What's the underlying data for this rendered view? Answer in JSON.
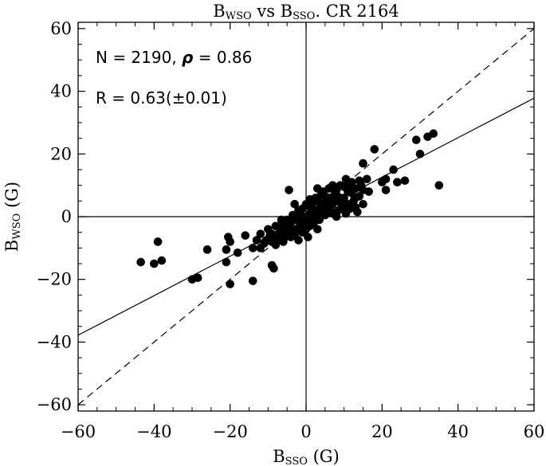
{
  "chart_data": {
    "type": "scatter",
    "title": {
      "main": "B",
      "main_sub": "WSO",
      "mid": " vs B",
      "mid_sub": "SSO",
      "tail": ". CR 2164"
    },
    "xlabel": {
      "main": "B",
      "sub": "SSO",
      "tail": " (G)"
    },
    "ylabel": {
      "main": "B",
      "sub": "WSO",
      "tail": " (G)"
    },
    "xlim": [
      -60,
      60
    ],
    "ylim": [
      -62,
      62
    ],
    "xticks": [
      -60,
      -40,
      -20,
      0,
      20,
      40,
      60
    ],
    "yticks": [
      -60,
      -40,
      -20,
      0,
      20,
      40,
      60
    ],
    "xtick_labels": [
      "−60",
      "−40",
      "−20",
      "0",
      "20",
      "40",
      "60"
    ],
    "ytick_labels": [
      "−60",
      "−40",
      "−20",
      "0",
      "20",
      "40",
      "60"
    ],
    "annotations": {
      "stats_line1": "N = 2190, ",
      "rho_symbol": "ρ",
      "stats_line1_tail": " = 0.86",
      "stats_line2": "R = 0.63(±0.01)"
    },
    "reference_lines": [
      {
        "name": "fit",
        "style": "solid",
        "slope": 0.63,
        "intercept": 0
      },
      {
        "name": "one-to-one",
        "style": "dashed",
        "slope": 1,
        "intercept": 0
      },
      {
        "name": "x-zero",
        "style": "solid",
        "vertical": 0
      },
      {
        "name": "y-zero",
        "style": "solid",
        "horizontal": 0
      }
    ],
    "grid": false,
    "points": [
      [
        -43.5,
        -14.5
      ],
      [
        -40,
        -15
      ],
      [
        -39,
        -8
      ],
      [
        -38,
        -14
      ],
      [
        -30,
        -20
      ],
      [
        -28.5,
        -19.5
      ],
      [
        -26,
        -10.5
      ],
      [
        -21,
        -10.5
      ],
      [
        -21,
        -14.5
      ],
      [
        -20.5,
        -6.5
      ],
      [
        -20,
        -21.5
      ],
      [
        -20,
        -8
      ],
      [
        -18,
        -11.5
      ],
      [
        -16,
        -6
      ],
      [
        -14,
        -20.5
      ],
      [
        -14,
        -10
      ],
      [
        -13,
        -7.5
      ],
      [
        -12,
        -10
      ],
      [
        -12,
        -5.5
      ],
      [
        -10.5,
        -7.5
      ],
      [
        -9,
        -15.5
      ],
      [
        -9,
        -5.5
      ],
      [
        -8.5,
        -16.5
      ],
      [
        -8,
        -9
      ],
      [
        -8,
        -6
      ],
      [
        -7,
        -3.5
      ],
      [
        -6,
        -8
      ],
      [
        -5,
        -5
      ],
      [
        -4.5,
        8.5
      ],
      [
        -4,
        -2
      ],
      [
        -3,
        -6
      ],
      [
        -3,
        4
      ],
      [
        -2.5,
        0
      ],
      [
        -2,
        -3.5
      ],
      [
        -1.5,
        1.5
      ],
      [
        -1,
        -1
      ],
      [
        -1,
        -5
      ],
      [
        0,
        0
      ],
      [
        0,
        -2
      ],
      [
        0.5,
        -6.5
      ],
      [
        1,
        1
      ],
      [
        1.5,
        3
      ],
      [
        2,
        -2
      ],
      [
        2,
        5
      ],
      [
        3,
        2
      ],
      [
        3.5,
        -1
      ],
      [
        4,
        7
      ],
      [
        4.5,
        3
      ],
      [
        5,
        0.5
      ],
      [
        5.5,
        5.5
      ],
      [
        6,
        9
      ],
      [
        6.5,
        2
      ],
      [
        7,
        4
      ],
      [
        7.5,
        7
      ],
      [
        8,
        5
      ],
      [
        8,
        0
      ],
      [
        9,
        10
      ],
      [
        9.5,
        3
      ],
      [
        10,
        6
      ],
      [
        10.5,
        12
      ],
      [
        11,
        8
      ],
      [
        11.5,
        2.5
      ],
      [
        12,
        11
      ],
      [
        12.5,
        5
      ],
      [
        13,
        9
      ],
      [
        13.5,
        1.5
      ],
      [
        14,
        6.5
      ],
      [
        14.5,
        10
      ],
      [
        15,
        4
      ],
      [
        15,
        17
      ],
      [
        16,
        12
      ],
      [
        16.5,
        8
      ],
      [
        18,
        21.5
      ],
      [
        20,
        11
      ],
      [
        21,
        8.5
      ],
      [
        21,
        12
      ],
      [
        23,
        15
      ],
      [
        24,
        11
      ],
      [
        26,
        11.5
      ],
      [
        29,
        24.5
      ],
      [
        30,
        20
      ],
      [
        32,
        25.5
      ],
      [
        33.5,
        26.5
      ],
      [
        35,
        10
      ],
      [
        -6,
        -3
      ],
      [
        -5,
        -1
      ],
      [
        -4,
        -4
      ],
      [
        -3.5,
        0.5
      ],
      [
        -2,
        2
      ],
      [
        -1.5,
        -2.5
      ],
      [
        0.5,
        3.5
      ],
      [
        1,
        -3
      ],
      [
        2.5,
        6
      ],
      [
        3,
        -4
      ],
      [
        4,
        1
      ],
      [
        5,
        3
      ],
      [
        6,
        6
      ],
      [
        7,
        1
      ],
      [
        8,
        8.5
      ],
      [
        9,
        4.5
      ],
      [
        10,
        9.5
      ],
      [
        -7,
        -5
      ],
      [
        -5.5,
        -6.5
      ],
      [
        -2.5,
        -4.5
      ],
      [
        1.5,
        -0.5
      ],
      [
        3.5,
        4.5
      ],
      [
        4.5,
        8
      ],
      [
        6.5,
        5
      ],
      [
        8.5,
        2
      ],
      [
        11,
        4
      ],
      [
        12,
        7.5
      ],
      [
        13,
        3
      ],
      [
        -10,
        -4
      ],
      [
        -9,
        -8
      ],
      [
        -8,
        -3
      ],
      [
        -6.5,
        -1
      ],
      [
        -4.5,
        -2.5
      ],
      [
        -3,
        -1
      ],
      [
        -1,
        2.5
      ],
      [
        0,
        4
      ],
      [
        2,
        0
      ],
      [
        3,
        9
      ],
      [
        5,
        6.5
      ],
      [
        7,
        10
      ],
      [
        9,
        6
      ],
      [
        10.5,
        1
      ],
      [
        11.5,
        9.5
      ],
      [
        14,
        11.5
      ],
      [
        -11,
        -8.5
      ],
      [
        -9.5,
        -6
      ],
      [
        -7.5,
        -7
      ],
      [
        -4,
        -6.5
      ],
      [
        -2,
        -7.5
      ],
      [
        0,
        -4
      ],
      [
        1,
        5.5
      ],
      [
        2,
        2.5
      ],
      [
        4,
        4
      ],
      [
        6,
        2.5
      ],
      [
        8,
        7
      ],
      [
        10,
        3
      ],
      [
        13,
        6
      ],
      [
        15,
        8.5
      ]
    ]
  }
}
